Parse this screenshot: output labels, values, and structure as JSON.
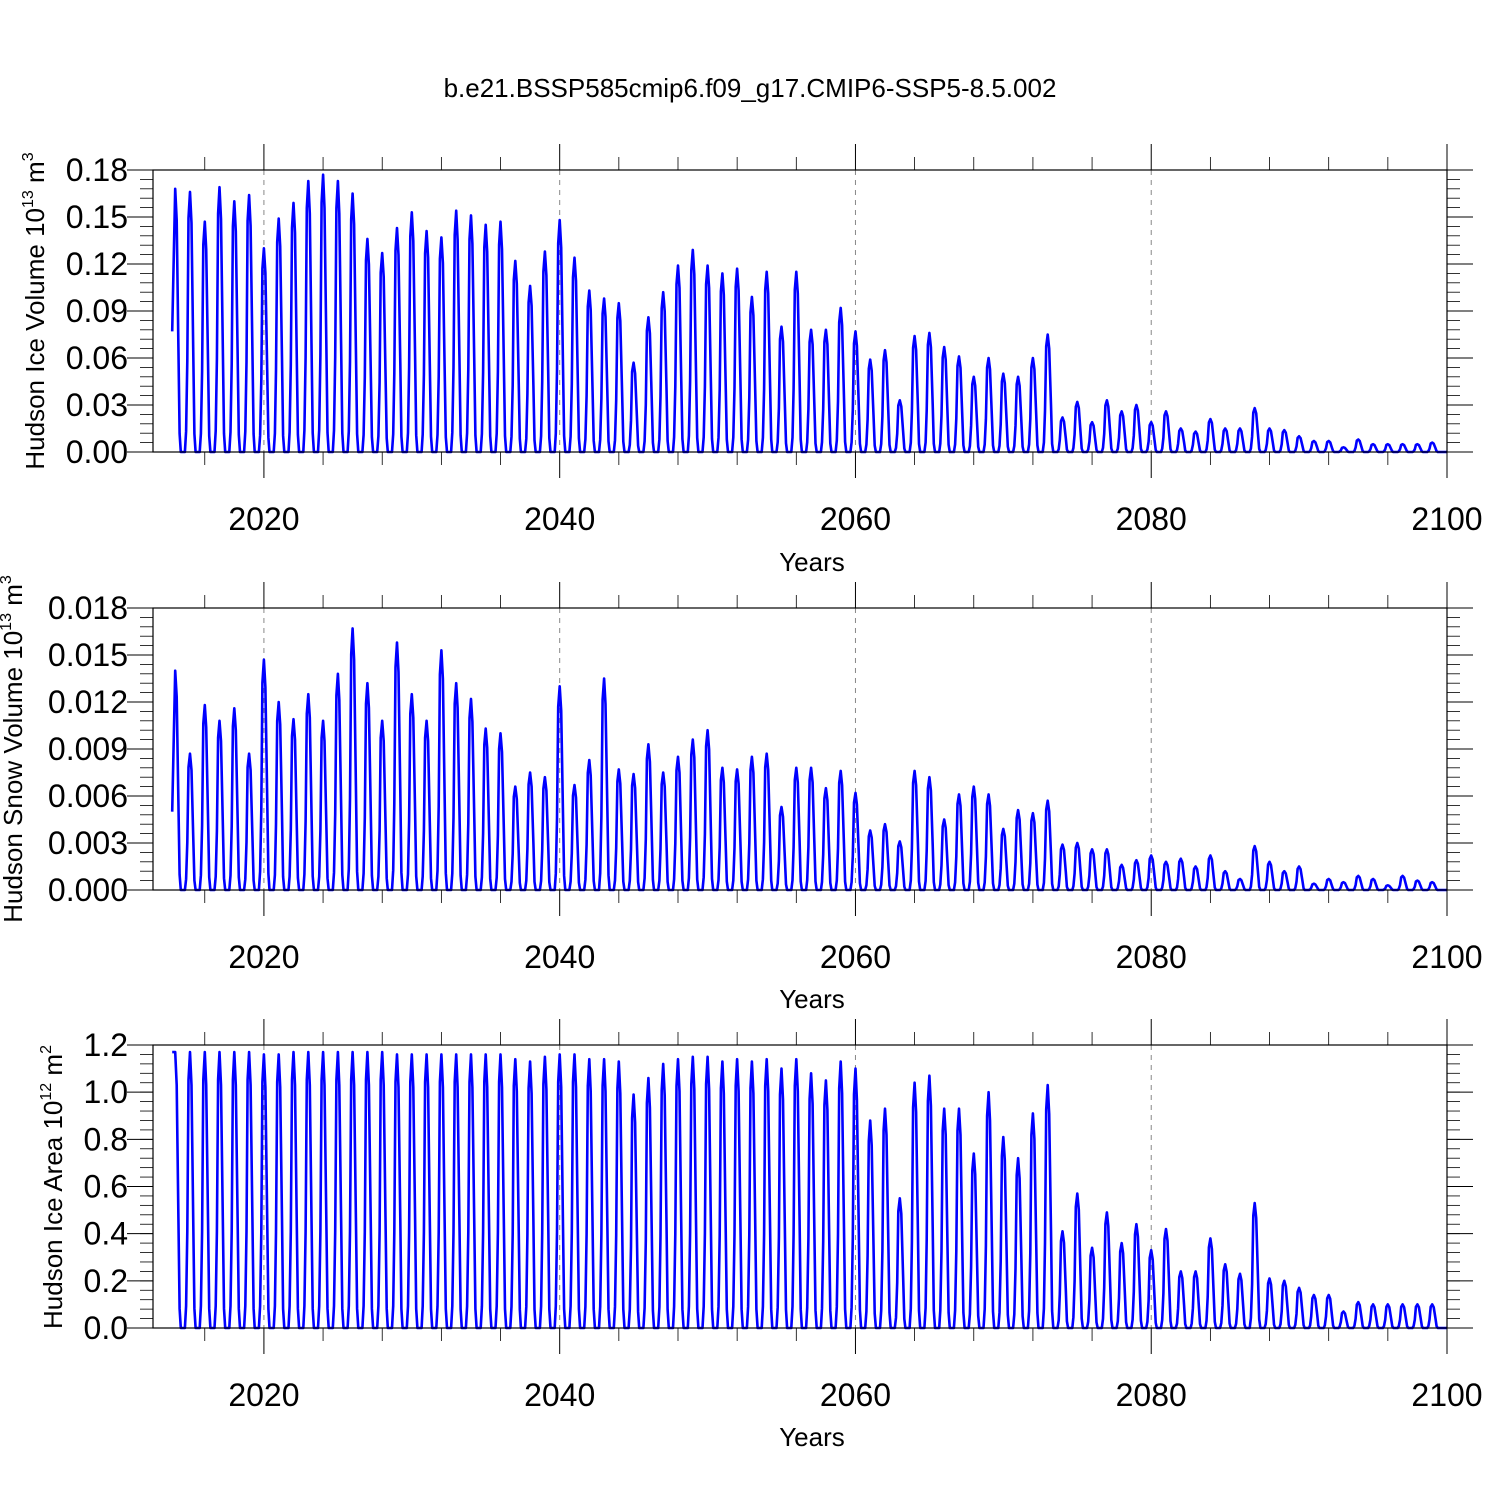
{
  "figure_title": "b.e21.BSSP585cmip6.f09_g17.CMIP6-SSP5-8.5.002",
  "colors": {
    "series": "#0000ff",
    "grid": "#888888",
    "axes": "#000000"
  },
  "chart_data": [
    {
      "type": "line",
      "title": "b.e21.BSSP585cmip6.f09_g17.CMIP6-SSP5-8.5.002",
      "xlabel": "Years",
      "ylabel": {
        "prefix": "Hudson Ice Volume 10",
        "exp": "13",
        "suffix": " m",
        "unit_exp": "3"
      },
      "xlim": [
        2012.5,
        2100
      ],
      "ylim": [
        0,
        0.18
      ],
      "x_ticks": [
        2020,
        2040,
        2060,
        2080,
        2100
      ],
      "y_ticks": [
        "0.00",
        "0.03",
        "0.06",
        "0.09",
        "0.12",
        "0.15",
        "0.18"
      ],
      "y_tick_values": [
        0,
        0.03,
        0.06,
        0.09,
        0.12,
        0.15,
        0.18
      ],
      "y_minor_step": 0.006,
      "grid_x": [
        2020,
        2040,
        2060,
        2080
      ],
      "start_value": 0.077,
      "series": [
        {
          "name": "Hudson Ice Volume",
          "years": [
            2014,
            2015,
            2016,
            2017,
            2018,
            2019,
            2020,
            2021,
            2022,
            2023,
            2024,
            2025,
            2026,
            2027,
            2028,
            2029,
            2030,
            2031,
            2032,
            2033,
            2034,
            2035,
            2036,
            2037,
            2038,
            2039,
            2040,
            2041,
            2042,
            2043,
            2044,
            2045,
            2046,
            2047,
            2048,
            2049,
            2050,
            2051,
            2052,
            2053,
            2054,
            2055,
            2056,
            2057,
            2058,
            2059,
            2060,
            2061,
            2062,
            2063,
            2064,
            2065,
            2066,
            2067,
            2068,
            2069,
            2070,
            2071,
            2072,
            2073,
            2074,
            2075,
            2076,
            2077,
            2078,
            2079,
            2080,
            2081,
            2082,
            2083,
            2084,
            2085,
            2086,
            2087,
            2088,
            2089,
            2090,
            2091,
            2092,
            2093,
            2094,
            2095,
            2096,
            2097,
            2098,
            2099
          ],
          "annual_peaks": [
            0.168,
            0.166,
            0.147,
            0.169,
            0.16,
            0.164,
            0.13,
            0.149,
            0.159,
            0.173,
            0.177,
            0.173,
            0.165,
            0.136,
            0.127,
            0.143,
            0.153,
            0.141,
            0.137,
            0.154,
            0.151,
            0.145,
            0.147,
            0.122,
            0.106,
            0.128,
            0.148,
            0.124,
            0.103,
            0.098,
            0.095,
            0.057,
            0.086,
            0.102,
            0.119,
            0.129,
            0.119,
            0.114,
            0.117,
            0.099,
            0.115,
            0.08,
            0.115,
            0.078,
            0.078,
            0.092,
            0.077,
            0.059,
            0.065,
            0.033,
            0.074,
            0.076,
            0.067,
            0.061,
            0.048,
            0.06,
            0.05,
            0.048,
            0.06,
            0.075,
            0.022,
            0.032,
            0.019,
            0.033,
            0.026,
            0.03,
            0.019,
            0.026,
            0.015,
            0.013,
            0.021,
            0.015,
            0.015,
            0.028,
            0.015,
            0.014,
            0.01,
            0.007,
            0.007,
            0.003,
            0.008,
            0.005,
            0.005,
            0.005,
            0.005,
            0.006
          ]
        }
      ]
    },
    {
      "type": "line",
      "xlabel": "Years",
      "ylabel": {
        "prefix": "Hudson Snow Volume 10",
        "exp": "13",
        "suffix": " m",
        "unit_exp": "3"
      },
      "xlim": [
        2012.5,
        2100
      ],
      "ylim": [
        0,
        0.018
      ],
      "x_ticks": [
        2020,
        2040,
        2060,
        2080,
        2100
      ],
      "y_ticks": [
        "0.000",
        "0.003",
        "0.006",
        "0.009",
        "0.012",
        "0.015",
        "0.018"
      ],
      "y_tick_values": [
        0,
        0.003,
        0.006,
        0.009,
        0.012,
        0.015,
        0.018
      ],
      "y_minor_step": 0.0006,
      "grid_x": [
        2020,
        2040,
        2060,
        2080
      ],
      "start_value": 0.005,
      "series": [
        {
          "name": "Hudson Snow Volume",
          "years": [
            2014,
            2015,
            2016,
            2017,
            2018,
            2019,
            2020,
            2021,
            2022,
            2023,
            2024,
            2025,
            2026,
            2027,
            2028,
            2029,
            2030,
            2031,
            2032,
            2033,
            2034,
            2035,
            2036,
            2037,
            2038,
            2039,
            2040,
            2041,
            2042,
            2043,
            2044,
            2045,
            2046,
            2047,
            2048,
            2049,
            2050,
            2051,
            2052,
            2053,
            2054,
            2055,
            2056,
            2057,
            2058,
            2059,
            2060,
            2061,
            2062,
            2063,
            2064,
            2065,
            2066,
            2067,
            2068,
            2069,
            2070,
            2071,
            2072,
            2073,
            2074,
            2075,
            2076,
            2077,
            2078,
            2079,
            2080,
            2081,
            2082,
            2083,
            2084,
            2085,
            2086,
            2087,
            2088,
            2089,
            2090,
            2091,
            2092,
            2093,
            2094,
            2095,
            2096,
            2097,
            2098,
            2099
          ],
          "annual_peaks": [
            0.014,
            0.0087,
            0.0118,
            0.0108,
            0.0116,
            0.0087,
            0.0147,
            0.012,
            0.0109,
            0.0125,
            0.0108,
            0.0138,
            0.0167,
            0.0132,
            0.0108,
            0.0158,
            0.0125,
            0.0108,
            0.0153,
            0.0132,
            0.0122,
            0.0103,
            0.01,
            0.0066,
            0.0075,
            0.0072,
            0.013,
            0.0067,
            0.0083,
            0.0135,
            0.0077,
            0.0074,
            0.0093,
            0.0075,
            0.0085,
            0.0096,
            0.0102,
            0.0078,
            0.0077,
            0.0085,
            0.0087,
            0.0053,
            0.0078,
            0.0078,
            0.0065,
            0.0076,
            0.0062,
            0.0038,
            0.0042,
            0.0031,
            0.0076,
            0.0072,
            0.0045,
            0.0061,
            0.0066,
            0.0061,
            0.0039,
            0.0051,
            0.0049,
            0.0057,
            0.0029,
            0.003,
            0.0026,
            0.0026,
            0.0016,
            0.0019,
            0.0022,
            0.0018,
            0.002,
            0.0015,
            0.0022,
            0.0012,
            0.0007,
            0.0028,
            0.0018,
            0.0012,
            0.0015,
            0.0004,
            0.0007,
            0.0005,
            0.0009,
            0.0007,
            0.0003,
            0.0009,
            0.0006,
            0.0005
          ]
        }
      ]
    },
    {
      "type": "line",
      "xlabel": "Years",
      "ylabel": {
        "prefix": "Hudson Ice Area 10",
        "exp": "12",
        "suffix": " m",
        "unit_exp": "2"
      },
      "xlim": [
        2012.5,
        2100
      ],
      "ylim": [
        0,
        1.2
      ],
      "x_ticks": [
        2020,
        2040,
        2060,
        2080,
        2100
      ],
      "y_ticks": [
        "0.0",
        "0.2",
        "0.4",
        "0.6",
        "0.8",
        "1.0",
        "1.2"
      ],
      "y_tick_values": [
        0,
        0.2,
        0.4,
        0.6,
        0.8,
        1.0,
        1.2
      ],
      "y_minor_step": 0.04,
      "grid_x": [
        2020,
        2040,
        2060,
        2080
      ],
      "start_value": 1.17,
      "series": [
        {
          "name": "Hudson Ice Area",
          "years": [
            2014,
            2015,
            2016,
            2017,
            2018,
            2019,
            2020,
            2021,
            2022,
            2023,
            2024,
            2025,
            2026,
            2027,
            2028,
            2029,
            2030,
            2031,
            2032,
            2033,
            2034,
            2035,
            2036,
            2037,
            2038,
            2039,
            2040,
            2041,
            2042,
            2043,
            2044,
            2045,
            2046,
            2047,
            2048,
            2049,
            2050,
            2051,
            2052,
            2053,
            2054,
            2055,
            2056,
            2057,
            2058,
            2059,
            2060,
            2061,
            2062,
            2063,
            2064,
            2065,
            2066,
            2067,
            2068,
            2069,
            2070,
            2071,
            2072,
            2073,
            2074,
            2075,
            2076,
            2077,
            2078,
            2079,
            2080,
            2081,
            2082,
            2083,
            2084,
            2085,
            2086,
            2087,
            2088,
            2089,
            2090,
            2091,
            2092,
            2093,
            2094,
            2095,
            2096,
            2097,
            2098,
            2099
          ],
          "annual_peaks": [
            1.17,
            1.17,
            1.17,
            1.17,
            1.17,
            1.17,
            1.16,
            1.16,
            1.17,
            1.17,
            1.17,
            1.17,
            1.17,
            1.17,
            1.17,
            1.16,
            1.16,
            1.16,
            1.16,
            1.16,
            1.16,
            1.16,
            1.16,
            1.14,
            1.13,
            1.15,
            1.16,
            1.16,
            1.14,
            1.14,
            1.13,
            0.99,
            1.06,
            1.12,
            1.14,
            1.15,
            1.15,
            1.13,
            1.14,
            1.13,
            1.14,
            1.1,
            1.14,
            1.08,
            1.05,
            1.13,
            1.1,
            0.88,
            0.93,
            0.55,
            1.04,
            1.07,
            0.93,
            0.93,
            0.74,
            1.0,
            0.81,
            0.72,
            0.91,
            1.03,
            0.41,
            0.57,
            0.34,
            0.49,
            0.36,
            0.44,
            0.33,
            0.42,
            0.24,
            0.24,
            0.38,
            0.27,
            0.23,
            0.53,
            0.21,
            0.2,
            0.17,
            0.14,
            0.14,
            0.07,
            0.11,
            0.1,
            0.1,
            0.1,
            0.1,
            0.1
          ]
        }
      ]
    }
  ]
}
